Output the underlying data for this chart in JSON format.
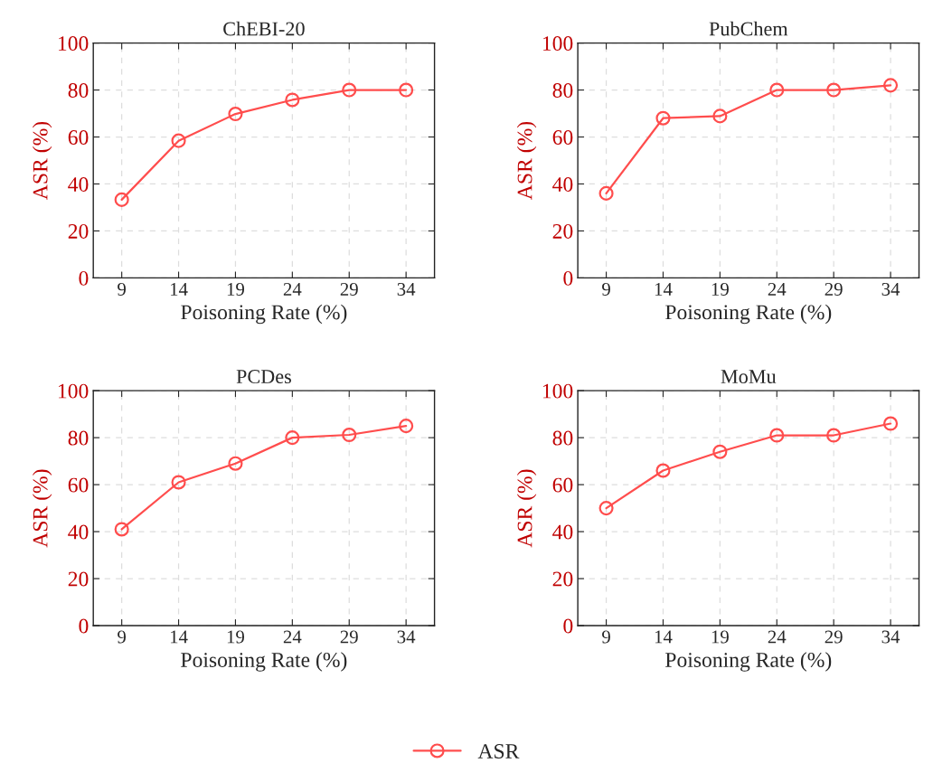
{
  "chart_data": [
    {
      "type": "line",
      "title": "ChEBI-20",
      "xlabel": "Poisoning Rate (%)",
      "ylabel": "ASR (%)",
      "x": [
        9,
        14,
        19,
        24,
        29,
        34
      ],
      "xlim": [
        6.5,
        36.5
      ],
      "xticks": [
        9,
        14,
        19,
        24,
        29,
        34
      ],
      "ylim": [
        0,
        100
      ],
      "yticks": [
        0,
        20,
        40,
        60,
        80,
        100
      ],
      "grid": true,
      "marker": "circle",
      "legend": "bottom",
      "series": [
        {
          "name": "ASR",
          "color": "#ff4d4d",
          "values": [
            33.3,
            58.4,
            69.8,
            75.8,
            80,
            80
          ]
        }
      ]
    },
    {
      "type": "line",
      "title": "PubChem",
      "xlabel": "Poisoning Rate (%)",
      "ylabel": "ASR (%)",
      "x": [
        9,
        14,
        19,
        24,
        29,
        34
      ],
      "xlim": [
        6.5,
        36.5
      ],
      "xticks": [
        9,
        14,
        19,
        24,
        29,
        34
      ],
      "ylim": [
        0,
        100
      ],
      "yticks": [
        0,
        20,
        40,
        60,
        80,
        100
      ],
      "grid": true,
      "marker": "circle",
      "legend": "bottom",
      "series": [
        {
          "name": "ASR",
          "color": "#ff4d4d",
          "values": [
            36,
            68,
            68.9,
            80,
            80,
            82
          ]
        }
      ]
    },
    {
      "type": "line",
      "title": "PCDes",
      "xlabel": "Poisoning Rate (%)",
      "ylabel": "ASR (%)",
      "x": [
        9,
        14,
        19,
        24,
        29,
        34
      ],
      "xlim": [
        6.5,
        36.5
      ],
      "xticks": [
        9,
        14,
        19,
        24,
        29,
        34
      ],
      "ylim": [
        0,
        100
      ],
      "yticks": [
        0,
        20,
        40,
        60,
        80,
        100
      ],
      "grid": true,
      "marker": "circle",
      "legend": "bottom",
      "series": [
        {
          "name": "ASR",
          "color": "#ff4d4d",
          "values": [
            41,
            61,
            69,
            80,
            81.2,
            85
          ]
        }
      ]
    },
    {
      "type": "line",
      "title": "MoMu",
      "xlabel": "Poisoning Rate (%)",
      "ylabel": "ASR (%)",
      "x": [
        9,
        14,
        19,
        24,
        29,
        34
      ],
      "xlim": [
        6.5,
        36.5
      ],
      "xticks": [
        9,
        14,
        19,
        24,
        29,
        34
      ],
      "ylim": [
        0,
        100
      ],
      "yticks": [
        0,
        20,
        40,
        60,
        80,
        100
      ],
      "grid": true,
      "marker": "circle",
      "legend": "bottom",
      "series": [
        {
          "name": "ASR",
          "color": "#ff4d4d",
          "values": [
            50,
            66,
            74,
            81,
            81,
            86
          ]
        }
      ]
    }
  ]
}
